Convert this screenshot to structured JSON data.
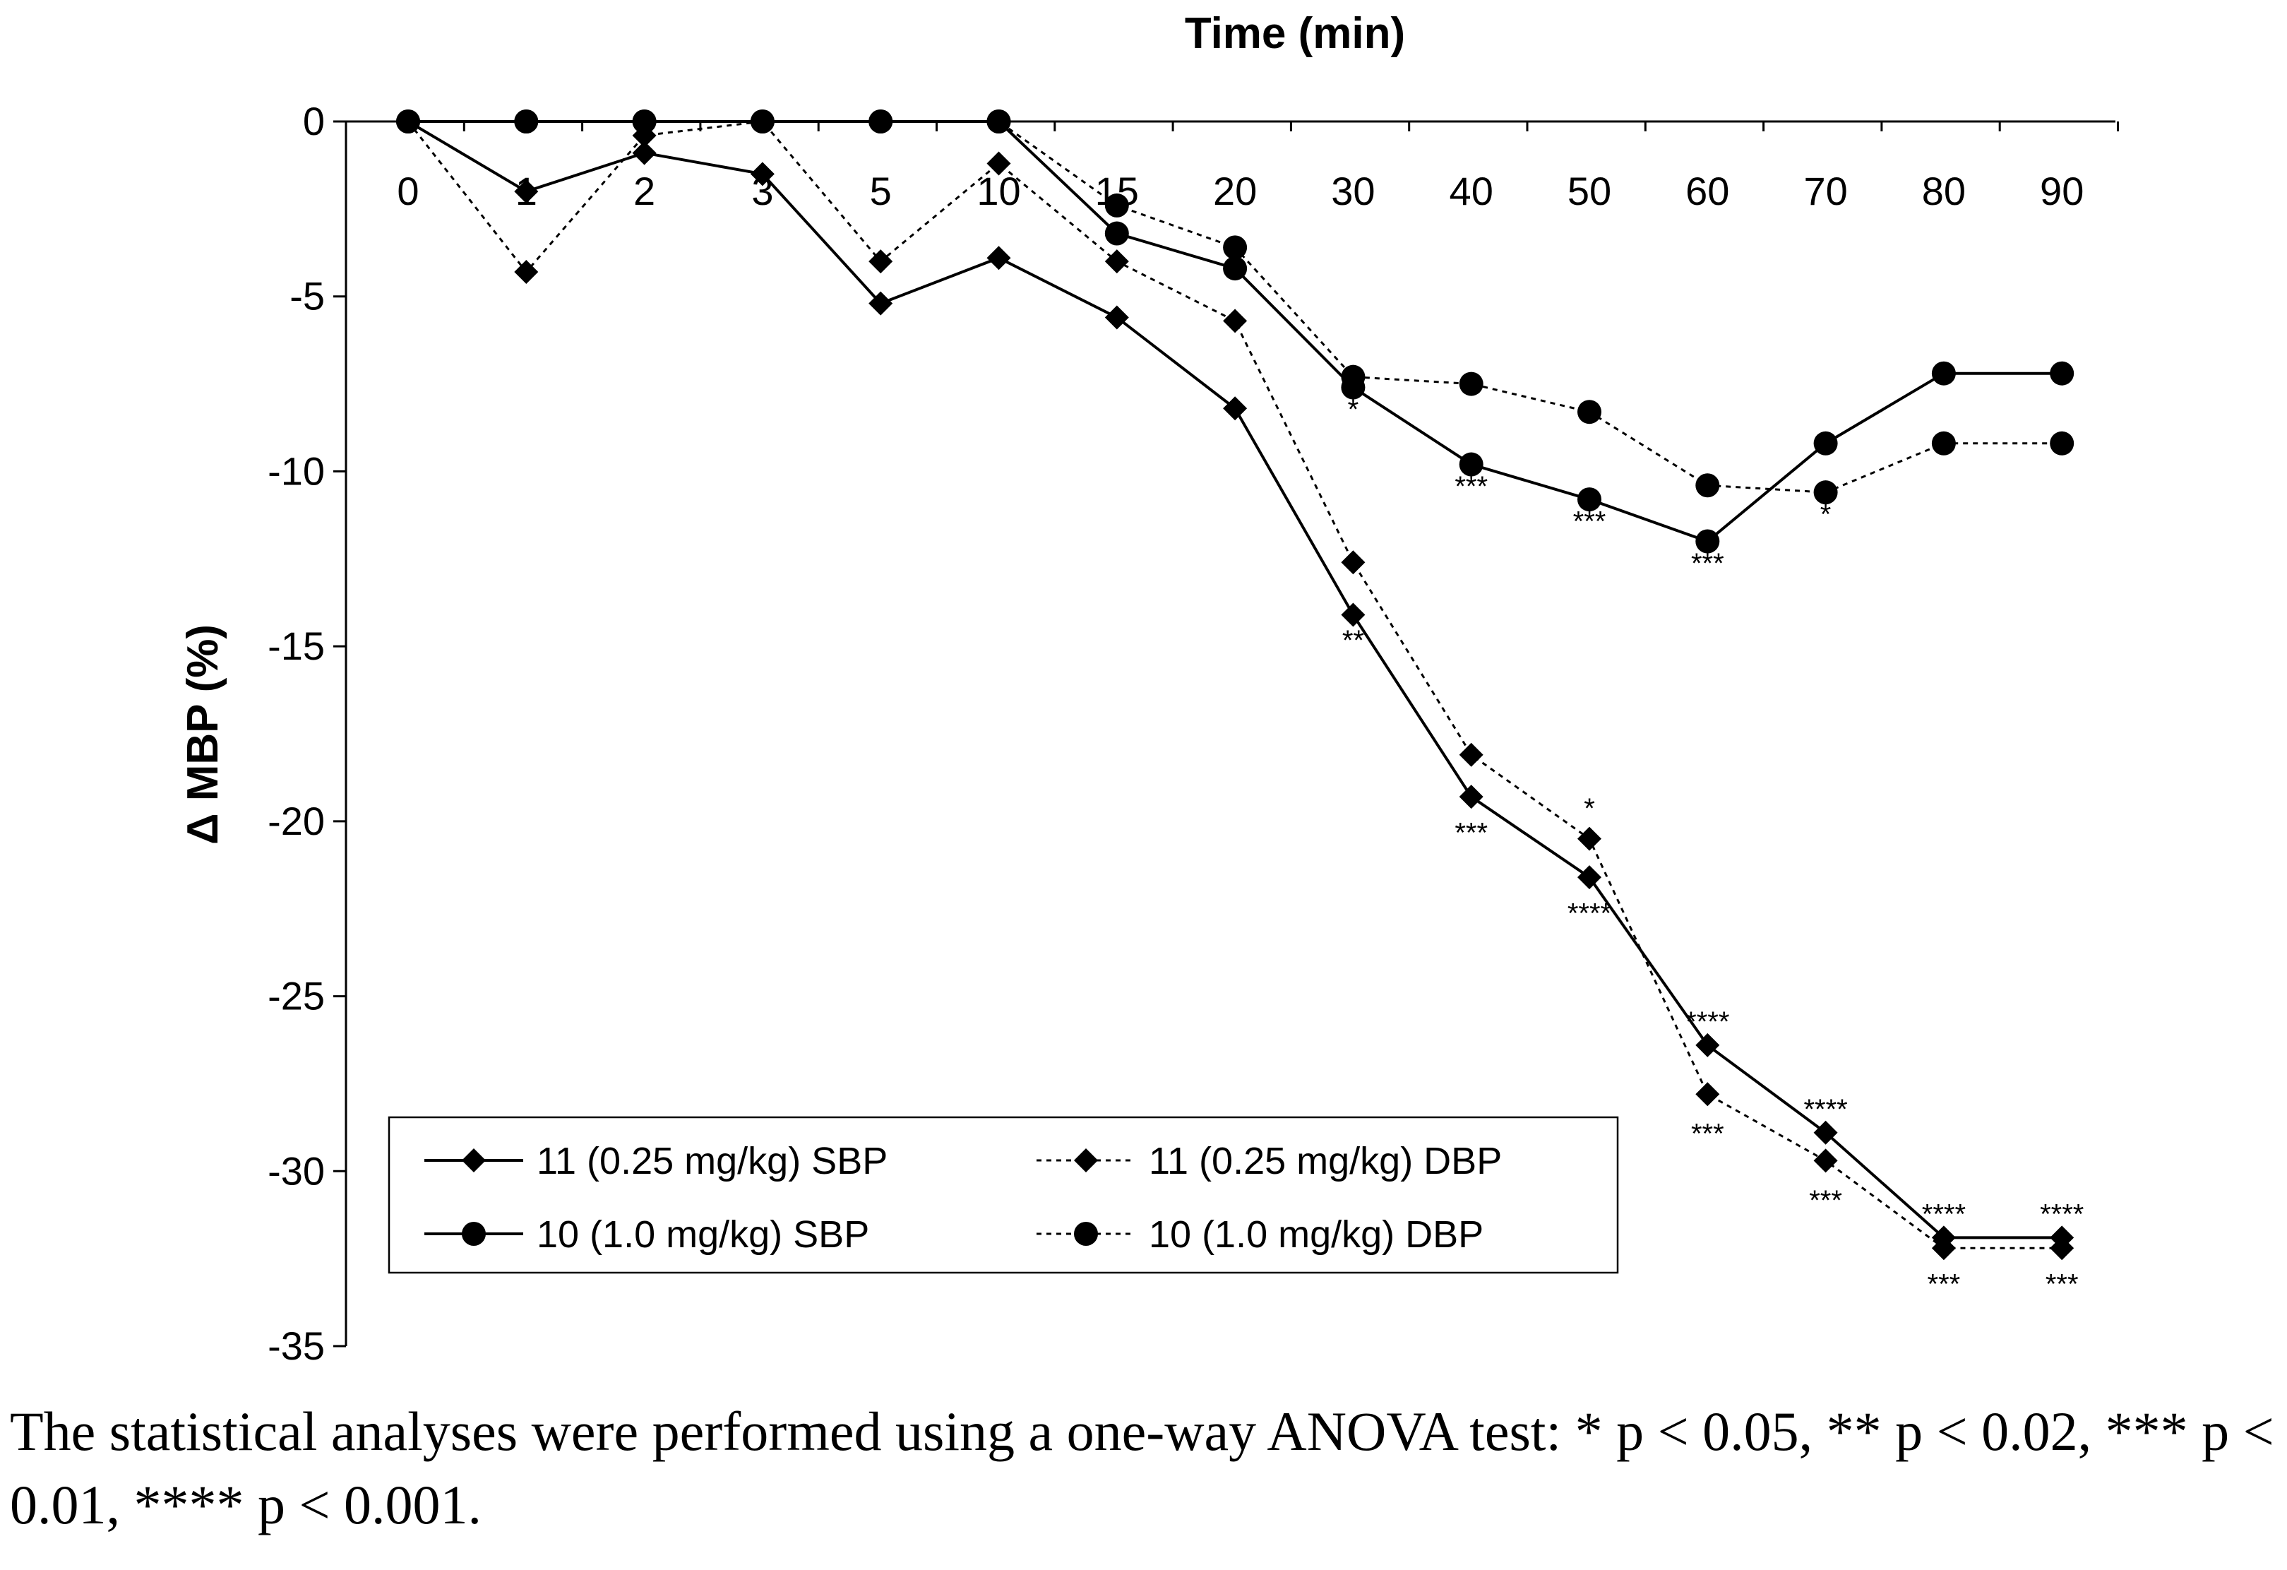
{
  "chart_data": {
    "type": "line",
    "title": "",
    "xlabel": "Time (min)",
    "ylabel": "Δ MBP (%)",
    "categories": [
      "0",
      "1",
      "2",
      "3",
      "5",
      "10",
      "15",
      "20",
      "30",
      "40",
      "50",
      "60",
      "70",
      "80",
      "90"
    ],
    "y_ticks": [
      "0",
      "-5",
      "-10",
      "-15",
      "-20",
      "-25",
      "-30",
      "-35"
    ],
    "ylim": [
      -35,
      0
    ],
    "grid": false,
    "legend_position": "bottom-center",
    "series": [
      {
        "name": "11 (0.25 mg/kg) SBP",
        "marker": "diamond",
        "line": "solid",
        "values": [
          0,
          -2.0,
          -0.9,
          -1.5,
          -5.2,
          -3.9,
          -5.6,
          -8.2,
          -14.1,
          -19.3,
          -21.6,
          -26.4,
          -28.9,
          -31.9,
          -31.9
        ]
      },
      {
        "name": "11 (0.25 mg/kg) DBP",
        "marker": "diamond",
        "line": "dotted",
        "values": [
          0,
          -4.3,
          -0.4,
          0,
          -4.0,
          -1.2,
          -4.0,
          -5.7,
          -12.6,
          -18.1,
          -20.5,
          -27.8,
          -29.7,
          -32.2,
          -32.2
        ]
      },
      {
        "name": "10 (1.0 mg/kg) SBP",
        "marker": "circle",
        "line": "solid",
        "values": [
          0,
          0,
          0,
          0,
          0,
          0,
          -3.2,
          -4.2,
          -7.6,
          -9.8,
          -10.8,
          -12.0,
          -9.2,
          -7.2,
          -7.2
        ]
      },
      {
        "name": "10 (1.0 mg/kg) DBP",
        "marker": "circle",
        "line": "dotted",
        "values": [
          0,
          0,
          0,
          0,
          0,
          0,
          -2.4,
          -3.6,
          -7.3,
          -7.5,
          -8.3,
          -10.4,
          -10.6,
          -9.2,
          -9.2
        ]
      }
    ],
    "annotations": [
      {
        "text": "*",
        "x": "30",
        "y": -8.5
      },
      {
        "text": "***",
        "x": "40",
        "y": -10.7
      },
      {
        "text": "***",
        "x": "50",
        "y": -11.7
      },
      {
        "text": "***",
        "x": "60",
        "y": -12.9
      },
      {
        "text": "*",
        "x": "70",
        "y": -11.5
      },
      {
        "text": "**",
        "x": "30",
        "y": -15.1
      },
      {
        "text": "*",
        "x": "50",
        "y": -19.9
      },
      {
        "text": "***",
        "x": "40",
        "y": -20.6
      },
      {
        "text": "****",
        "x": "50",
        "y": -22.9
      },
      {
        "text": "****",
        "x": "60",
        "y": -26.0
      },
      {
        "text": "***",
        "x": "60",
        "y": -29.2
      },
      {
        "text": "****",
        "x": "70",
        "y": -28.5
      },
      {
        "text": "***",
        "x": "70",
        "y": -31.1
      },
      {
        "text": "****",
        "x": "80",
        "y": -31.5
      },
      {
        "text": "****",
        "x": "90",
        "y": -31.5
      },
      {
        "text": "***",
        "x": "80",
        "y": -33.5
      },
      {
        "text": "***",
        "x": "90",
        "y": -33.5
      }
    ]
  },
  "caption": "The statistical analyses were performed using a one-way ANOVA test: * p < 0.05, ** p < 0.02, *** p < 0.01, **** p < 0.001."
}
